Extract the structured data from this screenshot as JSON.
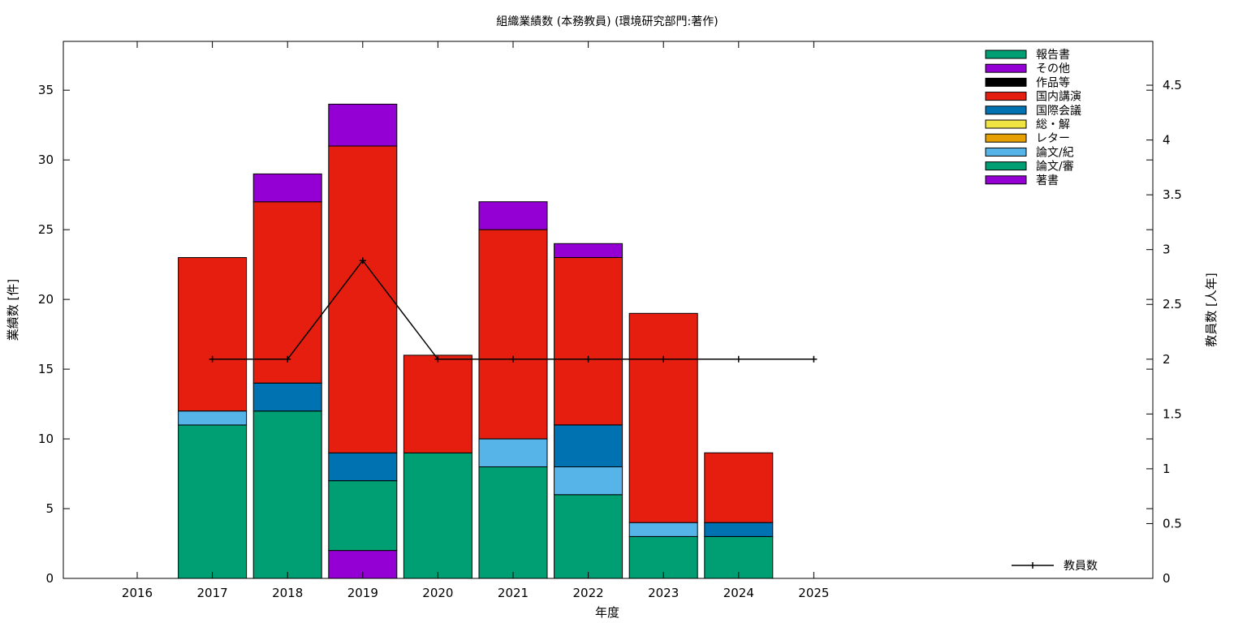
{
  "chart_data": {
    "type": "bar",
    "stacked": true,
    "title": "組織業績数 (本務教員) (環境研究部門:著作)",
    "xlabel": "年度",
    "ylabel": "業績数 [件]",
    "y2label": "教員数 [人年]",
    "categories": [
      "2016",
      "2017",
      "2018",
      "2019",
      "2020",
      "2021",
      "2022",
      "2023",
      "2024",
      "2025"
    ],
    "ylim": [
      0,
      38.5
    ],
    "y2lim": [
      0,
      4.9
    ],
    "yticks": [
      "0",
      "5",
      "10",
      "15",
      "20",
      "25",
      "30",
      "35"
    ],
    "y2ticks": [
      "0",
      "0.5",
      "1",
      "1.5",
      "2",
      "2.5",
      "3",
      "3.5",
      "4",
      "4.5"
    ],
    "grid": false,
    "legend_position": "top-right",
    "series": [
      {
        "name": "著書",
        "color": "#9400d3",
        "values": [
          0,
          0,
          0,
          2,
          0,
          0,
          0,
          0,
          0,
          0
        ]
      },
      {
        "name": "論文/審",
        "color": "#009e73",
        "values": [
          0,
          11,
          12,
          5,
          9,
          8,
          6,
          3,
          3,
          0
        ]
      },
      {
        "name": "論文/紀",
        "color": "#56b4e9",
        "values": [
          0,
          1,
          0,
          0,
          0,
          2,
          2,
          1,
          0,
          0
        ]
      },
      {
        "name": "レター",
        "color": "#e69f00",
        "values": [
          0,
          0,
          0,
          0,
          0,
          0,
          0,
          0,
          0,
          0
        ]
      },
      {
        "name": "総・解",
        "color": "#f0e442",
        "values": [
          0,
          0,
          0,
          0,
          0,
          0,
          0,
          0,
          0,
          0
        ]
      },
      {
        "name": "国際会議",
        "color": "#0072b2",
        "values": [
          0,
          0,
          2,
          2,
          0,
          0,
          3,
          0,
          1,
          0
        ]
      },
      {
        "name": "国内講演",
        "color": "#e51e10",
        "values": [
          0,
          11,
          13,
          22,
          7,
          15,
          12,
          15,
          5,
          0
        ]
      },
      {
        "name": "作品等",
        "color": "#000000",
        "values": [
          0,
          0,
          0,
          0,
          0,
          0,
          0,
          0,
          0,
          0
        ]
      },
      {
        "name": "その他",
        "color": "#9400d3",
        "values": [
          0,
          0,
          2,
          3,
          0,
          2,
          1,
          0,
          0,
          0
        ]
      },
      {
        "name": "報告書",
        "color": "#009e73",
        "values": [
          0,
          0,
          0,
          0,
          0,
          0,
          0,
          0,
          0,
          0
        ]
      }
    ],
    "line_series": {
      "name": "教員数",
      "axis": "y2",
      "color": "#000000",
      "x": [
        "2017",
        "2018",
        "2019",
        "2020",
        "2021",
        "2022",
        "2023",
        "2024",
        "2025"
      ],
      "values": [
        2,
        2,
        2.9,
        2,
        2,
        2,
        2,
        2,
        2
      ]
    }
  }
}
